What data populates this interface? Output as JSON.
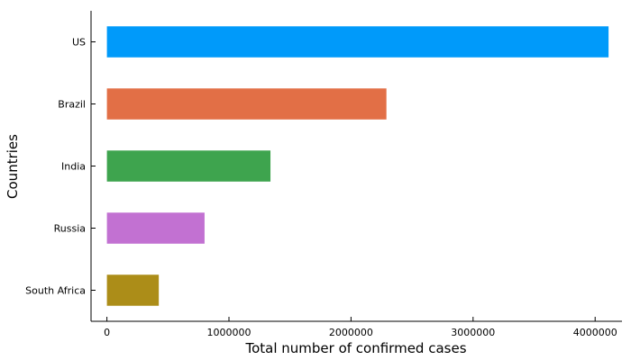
{
  "chart_data": {
    "type": "bar",
    "orientation": "horizontal",
    "title": "",
    "xlabel": "Total number of confirmed cases",
    "ylabel": "Countries",
    "categories": [
      "US",
      "Brazil",
      "India",
      "Russia",
      "South Africa"
    ],
    "values": [
      4110000,
      2290000,
      1340000,
      800000,
      425000
    ],
    "colors": [
      "#009afa",
      "#e26f46",
      "#3ea44e",
      "#c271d2",
      "#ac8d18"
    ],
    "xlim": [
      -130000,
      4220000
    ],
    "xticks": [
      0,
      1000000,
      2000000,
      3000000,
      4000000
    ],
    "xtick_labels": [
      "0",
      "1000000",
      "2000000",
      "3000000",
      "4000000"
    ],
    "grid": false,
    "legend": "none"
  }
}
